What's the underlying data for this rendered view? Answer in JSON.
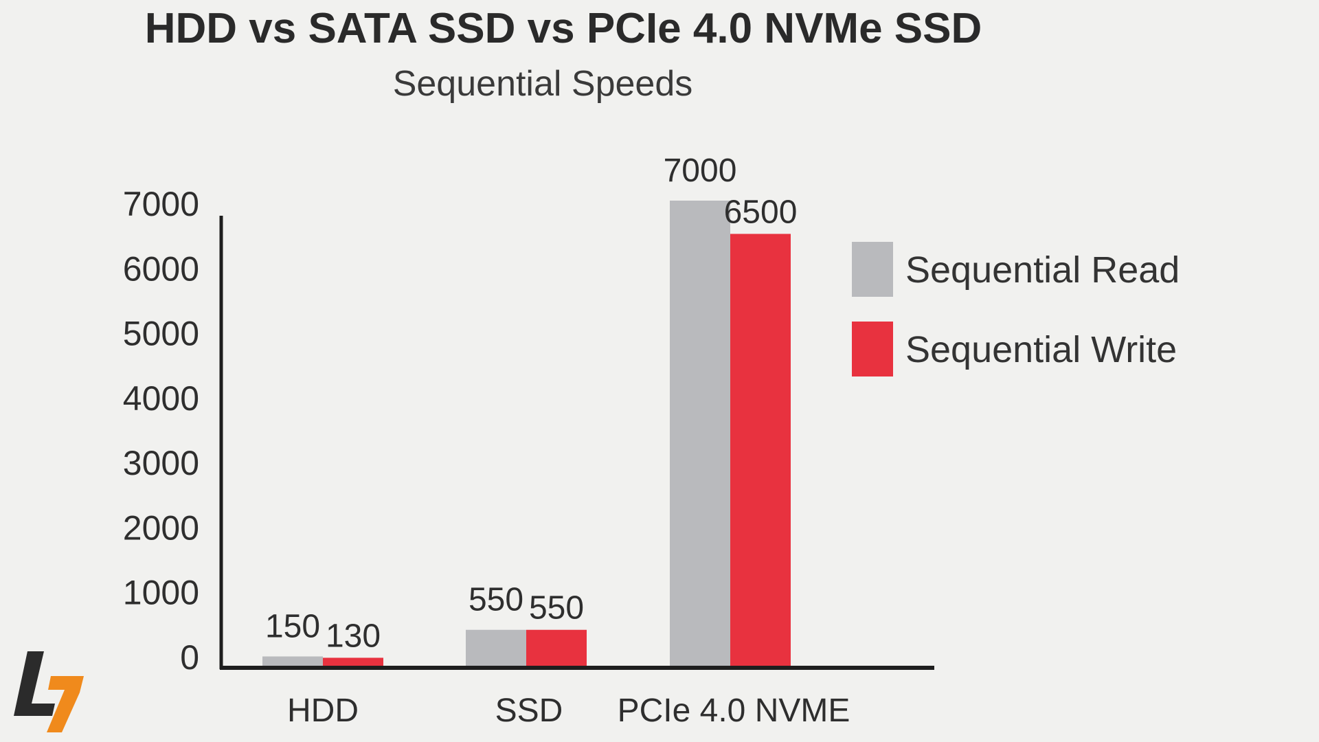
{
  "title": "HDD vs SATA SSD vs PCIe 4.0 NVMe SSD",
  "subtitle": "Sequential Speeds",
  "colors": {
    "read": "#b9babd",
    "write": "#e8323f",
    "axis": "#1e1e1e",
    "text": "#2e2e2e",
    "logo_dark": "#2b2b2b",
    "logo_accent": "#f08a1c"
  },
  "chart_data": {
    "type": "bar",
    "title": "HDD vs SATA SSD vs PCIe 4.0 NVMe SSD",
    "subtitle": "Sequential Speeds",
    "categories": [
      "HDD",
      "SSD",
      "PCIe 4.0 NVME"
    ],
    "series": [
      {
        "name": "Sequential Read",
        "values": [
          150,
          550,
          7000
        ],
        "labels": [
          "150",
          "550",
          "7000"
        ]
      },
      {
        "name": "Sequential Write",
        "values": [
          130,
          550,
          6500
        ],
        "labels": [
          "130",
          "550",
          "6500"
        ]
      }
    ],
    "yticks": [
      0,
      1000,
      2000,
      3000,
      4000,
      5000,
      6000,
      7000
    ],
    "ytick_labels": [
      "0",
      "1000",
      "2000",
      "3000",
      "4000",
      "5000",
      "6000",
      "7000"
    ],
    "ylim": [
      0,
      7000
    ],
    "grid": false,
    "legend": "right"
  }
}
